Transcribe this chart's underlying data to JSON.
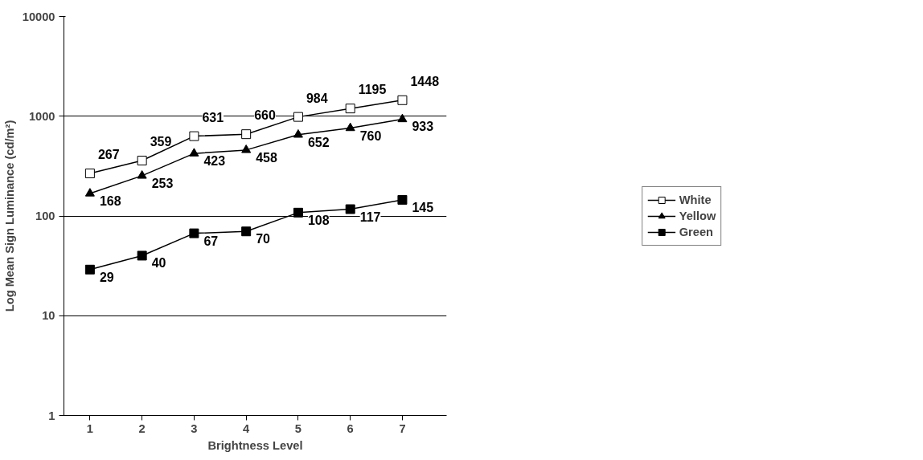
{
  "chart_data": {
    "type": "line",
    "xlabel": "Brightness Level",
    "ylabel": "Log Mean Sign Luminance (cd/m²)",
    "categories": [
      "1",
      "2",
      "3",
      "4",
      "5",
      "6",
      "7"
    ],
    "series": [
      {
        "name": "White",
        "color": "#000000",
        "marker": "square",
        "values": [
          267,
          359,
          631,
          660,
          984,
          1195,
          1448
        ]
      },
      {
        "name": "Yellow",
        "color": "#000000",
        "marker": "triangle",
        "values": [
          168,
          253,
          423,
          458,
          652,
          760,
          933
        ]
      },
      {
        "name": "Green",
        "color": "#000000",
        "marker": "square",
        "values": [
          29,
          40,
          67,
          70,
          108,
          117,
          145
        ]
      }
    ],
    "log": "y",
    "ylim": [
      1,
      10000
    ],
    "yticks": [
      1,
      10,
      100,
      1000,
      10000
    ],
    "grid": "y",
    "legend": "right",
    "data_labels": true,
    "line_style": "solid"
  }
}
